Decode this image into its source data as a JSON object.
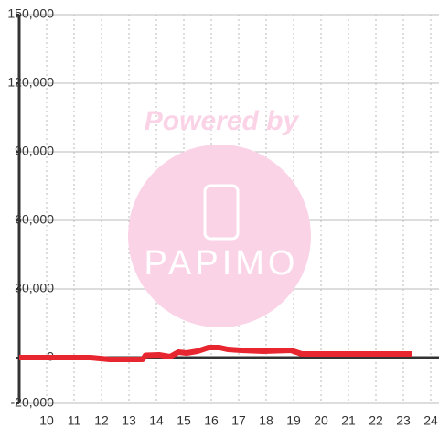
{
  "chart_data": {
    "type": "line",
    "watermark": {
      "line1": "Powered by",
      "line2": "PAPIMO"
    },
    "x": [
      9,
      11.6,
      12.3,
      13.5,
      13.6,
      14.1,
      14.5,
      14.8,
      15.1,
      15.5,
      15.9,
      16.3,
      16.6,
      17.1,
      17.9,
      18.9,
      19.3,
      23.3
    ],
    "series": [
      {
        "color": "#e8262f",
        "values": [
          0,
          0,
          -800,
          -800,
          1000,
          1200,
          400,
          2400,
          2000,
          2800,
          4400,
          4400,
          3600,
          3200,
          2800,
          3200,
          1600,
          1600
        ]
      }
    ],
    "xlim": [
      9,
      24.3
    ],
    "xticks": [
      10,
      11,
      12,
      13,
      14,
      15,
      16,
      17,
      18,
      19,
      20,
      21,
      22,
      23,
      24
    ],
    "ylim": [
      -20000,
      150000
    ],
    "yticks": [
      {
        "value": -20000,
        "label": "-20,000"
      },
      0,
      {
        "value": 30000,
        "label": "30,000"
      },
      {
        "value": 60000,
        "label": "60,000"
      },
      {
        "value": 90000,
        "label": "90,000"
      },
      {
        "value": 120000,
        "label": "120,000"
      },
      {
        "value": 150000,
        "label": "150,000"
      }
    ],
    "grid": true
  }
}
